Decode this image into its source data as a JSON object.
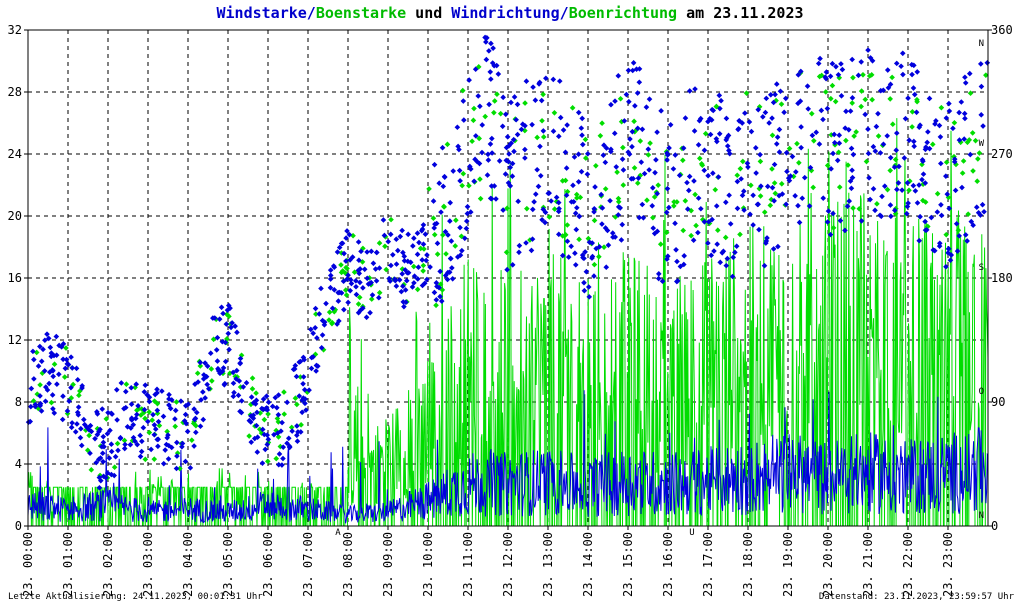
{
  "title": {
    "part1": "Windstarke",
    "sep1": "/",
    "part2": "Boenstarke",
    "mid": " und ",
    "part3": "Windrichtung",
    "sep2": "/",
    "part4": "Boenrichtung",
    "tail": " am 23.11.2023"
  },
  "colors": {
    "wind": "#0000dd",
    "gust": "#00dd00",
    "title_wind": "#0000cc",
    "title_gust": "#00bb00",
    "marker": "#cc0000"
  },
  "footer": {
    "left": "Letzte Aktualisierung: 24.11.2023, 00:01:31 Uhr",
    "right": "Datenstand: 23.11.2023, 23:59:57 Uhr"
  },
  "chart_data": {
    "type": "line",
    "x_tick_labels": [
      "23. 00:00",
      "23. 01:00",
      "23. 02:00",
      "23. 03:00",
      "23. 04:00",
      "23. 05:00",
      "23. 06:00",
      "23. 07:00",
      "23. 08:00",
      "23. 09:00",
      "23. 10:00",
      "23. 11:00",
      "23. 12:00",
      "23. 13:00",
      "23. 14:00",
      "23. 15:00",
      "23. 16:00",
      "23. 17:00",
      "23. 18:00",
      "23. 19:00",
      "23. 20:00",
      "23. 21:00",
      "23. 22:00",
      "23. 23:00"
    ],
    "y_left": {
      "ticks": [
        "0",
        "4",
        "8",
        "12",
        "16",
        "20",
        "24",
        "28",
        "32"
      ],
      "range": [
        0,
        32
      ]
    },
    "y_right": {
      "ticks": [
        "0",
        "90",
        "180",
        "270",
        "360"
      ],
      "range": [
        0,
        360
      ],
      "compass": [
        {
          "v": 0,
          "l": "N"
        },
        {
          "v": 90,
          "l": "O"
        },
        {
          "v": 180,
          "l": "S"
        },
        {
          "v": 270,
          "l": "W"
        },
        {
          "v": 360,
          "l": "N"
        }
      ]
    },
    "markers": [
      {
        "hour": 7.75,
        "label": "A"
      },
      {
        "hour": 16.6,
        "label": "U"
      }
    ],
    "grid": true,
    "series": [
      {
        "key": "gust",
        "kind": "line"
      },
      {
        "key": "wind",
        "kind": "line"
      },
      {
        "key": "gust_dir",
        "kind": "scatter"
      },
      {
        "key": "wind_dir",
        "kind": "scatter"
      }
    ],
    "wind_speed_profile": [
      [
        0,
        1.5
      ],
      [
        1,
        1.2
      ],
      [
        2,
        1.5
      ],
      [
        3,
        1.0
      ],
      [
        4,
        1.2
      ],
      [
        5,
        1.0
      ],
      [
        6,
        1.5
      ],
      [
        7,
        1.2
      ],
      [
        8,
        0.8
      ],
      [
        9,
        1.0
      ],
      [
        10,
        1.8
      ],
      [
        11,
        3.0
      ],
      [
        12,
        3.0
      ],
      [
        13,
        3.2
      ],
      [
        14,
        2.8
      ],
      [
        15,
        3.2
      ],
      [
        16,
        3.0
      ],
      [
        17,
        3.2
      ],
      [
        18,
        3.5
      ],
      [
        19,
        3.8
      ],
      [
        20,
        3.5
      ],
      [
        21,
        3.8
      ],
      [
        22,
        3.5
      ],
      [
        23,
        3.8
      ],
      [
        24,
        4.0
      ]
    ],
    "gust_speed_profile": [
      [
        0,
        2.5
      ],
      [
        1,
        2.5
      ],
      [
        2,
        2.5
      ],
      [
        3,
        2.5
      ],
      [
        4,
        2.5
      ],
      [
        5,
        2.5
      ],
      [
        6,
        2.5
      ],
      [
        7,
        2.5
      ],
      [
        8,
        3.5
      ],
      [
        9,
        5
      ],
      [
        10,
        7
      ],
      [
        11,
        12
      ],
      [
        12,
        11
      ],
      [
        13,
        12
      ],
      [
        14,
        11
      ],
      [
        15,
        12
      ],
      [
        16,
        11
      ],
      [
        17,
        12
      ],
      [
        18,
        13
      ],
      [
        19,
        13
      ],
      [
        20,
        14
      ],
      [
        21,
        15
      ],
      [
        22,
        13
      ],
      [
        23,
        14
      ],
      [
        24,
        13
      ]
    ],
    "direction_profile": [
      [
        0,
        100
      ],
      [
        0.5,
        110
      ],
      [
        1,
        105
      ],
      [
        1.5,
        60
      ],
      [
        2,
        55
      ],
      [
        2.5,
        90
      ],
      [
        3,
        70
      ],
      [
        3.5,
        75
      ],
      [
        4,
        60
      ],
      [
        4.5,
        120
      ],
      [
        5,
        135
      ],
      [
        5.5,
        90
      ],
      [
        6,
        70
      ],
      [
        6.5,
        75
      ],
      [
        7,
        110
      ],
      [
        7.5,
        160
      ],
      [
        8,
        190
      ],
      [
        8.5,
        175
      ],
      [
        9,
        205
      ],
      [
        9.5,
        185
      ],
      [
        10,
        200
      ],
      [
        10.5,
        230
      ],
      [
        11,
        275
      ],
      [
        11.5,
        300
      ],
      [
        12,
        240
      ],
      [
        12.5,
        260
      ],
      [
        13,
        275
      ],
      [
        13.5,
        255
      ],
      [
        14,
        230
      ],
      [
        14.5,
        250
      ],
      [
        15,
        280
      ],
      [
        15.5,
        260
      ],
      [
        16,
        230
      ],
      [
        16.5,
        250
      ],
      [
        17,
        260
      ],
      [
        17.5,
        240
      ],
      [
        18,
        265
      ],
      [
        18.5,
        250
      ],
      [
        19,
        280
      ],
      [
        19.5,
        285
      ],
      [
        20,
        270
      ],
      [
        20.5,
        275
      ],
      [
        21,
        290
      ],
      [
        21.5,
        270
      ],
      [
        22,
        285
      ],
      [
        22.5,
        260
      ],
      [
        23,
        250
      ],
      [
        23.5,
        270
      ],
      [
        24,
        275
      ]
    ]
  }
}
